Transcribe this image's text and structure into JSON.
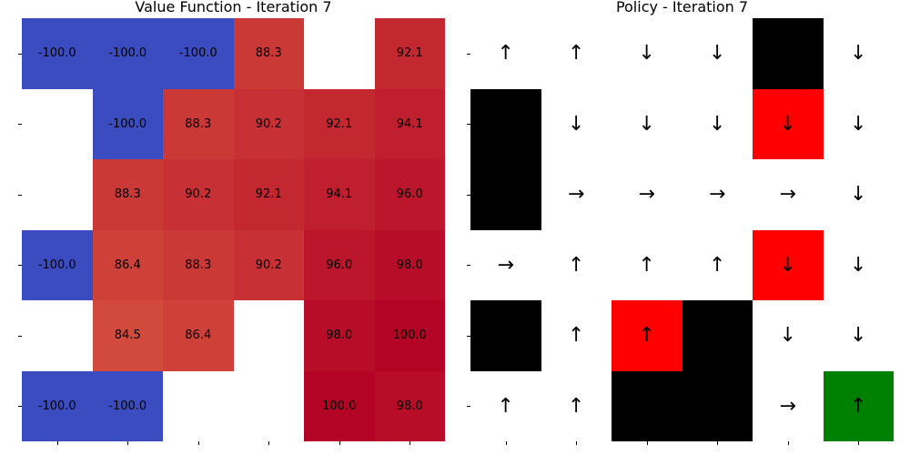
{
  "chart_data": [
    {
      "type": "heatmap",
      "title": "Value Function - Iteration 7",
      "rows": 6,
      "cols": 6,
      "colormap": {
        "negative": "#3b4cc0",
        "low": "#d24a3c",
        "high": "#b40426",
        "empty": "#ffffff"
      },
      "values": [
        [
          -100.0,
          -100.0,
          -100.0,
          88.3,
          null,
          92.1
        ],
        [
          null,
          -100.0,
          88.3,
          90.2,
          92.1,
          94.1
        ],
        [
          null,
          88.3,
          90.2,
          92.1,
          94.1,
          96.0
        ],
        [
          -100.0,
          86.4,
          88.3,
          90.2,
          96.0,
          98.0
        ],
        [
          null,
          84.5,
          86.4,
          null,
          98.0,
          100.0
        ],
        [
          -100.0,
          -100.0,
          null,
          null,
          100.0,
          98.0
        ]
      ],
      "labels": [
        [
          "-100.0",
          "-100.0",
          "-100.0",
          "88.3",
          "",
          "92.1"
        ],
        [
          "",
          "-100.0",
          "88.3",
          "90.2",
          "92.1",
          "94.1"
        ],
        [
          "",
          "88.3",
          "90.2",
          "92.1",
          "94.1",
          "96.0"
        ],
        [
          "-100.0",
          "86.4",
          "88.3",
          "90.2",
          "96.0",
          "98.0"
        ],
        [
          "",
          "84.5",
          "86.4",
          "",
          "98.0",
          "100.0"
        ],
        [
          "-100.0",
          "-100.0",
          "",
          "",
          "100.0",
          "98.0"
        ]
      ]
    },
    {
      "type": "heatmap",
      "title": "Policy - Iteration 7",
      "rows": 6,
      "cols": 6,
      "cell_colors": {
        "W": "#ffffff",
        "K": "#000000",
        "R": "#ff0000",
        "G": "#008000"
      },
      "cells": [
        [
          "W",
          "W",
          "W",
          "W",
          "K",
          "W"
        ],
        [
          "K",
          "W",
          "W",
          "W",
          "R",
          "W"
        ],
        [
          "K",
          "W",
          "W",
          "W",
          "W",
          "W"
        ],
        [
          "W",
          "W",
          "W",
          "W",
          "R",
          "W"
        ],
        [
          "K",
          "W",
          "R",
          "K",
          "W",
          "W"
        ],
        [
          "W",
          "W",
          "K",
          "K",
          "W",
          "G"
        ]
      ],
      "arrows": [
        [
          "↑",
          "↑",
          "↓",
          "↓",
          "",
          "↓"
        ],
        [
          "",
          "↓",
          "↓",
          "↓",
          "↓",
          "↓"
        ],
        [
          "",
          "→",
          "→",
          "→",
          "→",
          "↓"
        ],
        [
          "→",
          "↑",
          "↑",
          "↑",
          "↓",
          "↓"
        ],
        [
          "",
          "↑",
          "↑",
          "",
          "↓",
          "↓"
        ],
        [
          "↑",
          "↑",
          "",
          "",
          "→",
          "↑"
        ]
      ]
    }
  ]
}
